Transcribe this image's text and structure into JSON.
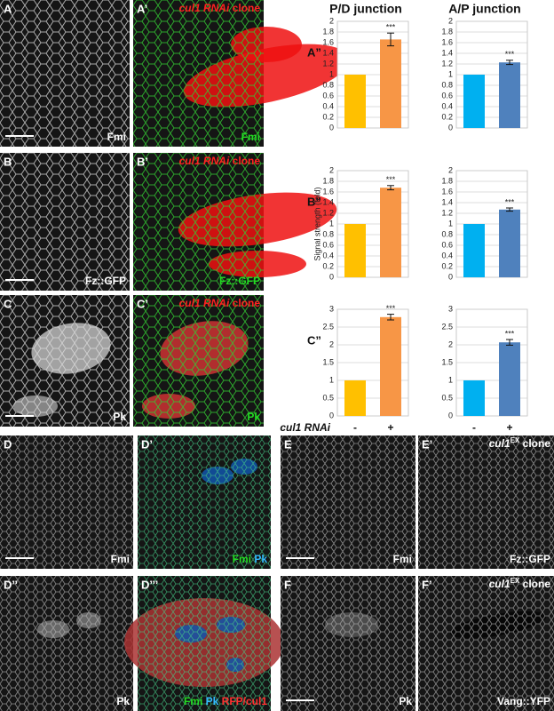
{
  "headers": [
    "P/D junction",
    "A/P junction"
  ],
  "panels": [
    {
      "label": "A",
      "bottom": [
        {
          "text": "Fmi",
          "color": "#ffffff"
        }
      ]
    },
    {
      "label": "A’",
      "top": [
        {
          "text": "cul1 RNAi",
          "color": "#ff2020",
          "italic": true
        },
        {
          "text": " clone",
          "color": "#ff2020"
        }
      ],
      "bottom": [
        {
          "text": "Fmi",
          "color": "#22dd22"
        }
      ]
    },
    {
      "label": "B",
      "bottom": [
        {
          "text": "Fz::GFP",
          "color": "#ffffff"
        }
      ]
    },
    {
      "label": "B’",
      "top": [
        {
          "text": "cul1 RNAi",
          "color": "#ff2020",
          "italic": true
        },
        {
          "text": " clone",
          "color": "#ff2020"
        }
      ],
      "bottom": [
        {
          "text": "Fz::GFP",
          "color": "#22dd22"
        }
      ]
    },
    {
      "label": "C",
      "bottom": [
        {
          "text": "Pk",
          "color": "#ffffff"
        }
      ]
    },
    {
      "label": "C’",
      "top": [
        {
          "text": "cul1 RNAi",
          "color": "#ff2020",
          "italic": true
        },
        {
          "text": " clone",
          "color": "#ff2020"
        }
      ],
      "bottom": [
        {
          "text": "Pk",
          "color": "#22dd22"
        }
      ]
    },
    {
      "label": "D",
      "bottom": [
        {
          "text": "Fmi",
          "color": "#ffffff"
        }
      ]
    },
    {
      "label": "D’",
      "bottom": [
        {
          "text": "Fmi",
          "color": "#22dd22"
        },
        {
          "text": " Pk",
          "color": "#33bbff"
        }
      ]
    },
    {
      "label": "E",
      "bottom": [
        {
          "text": "Fmi",
          "color": "#ffffff"
        }
      ]
    },
    {
      "label": "E’",
      "top": [
        {
          "text": "cul1",
          "color": "#ffffff",
          "italic": true
        },
        {
          "text": "EX",
          "color": "#ffffff",
          "sup": true
        },
        {
          "text": " clone",
          "color": "#ffffff"
        }
      ],
      "bottom": [
        {
          "text": "Fz::GFP",
          "color": "#ffffff"
        }
      ]
    },
    {
      "label": "D’’",
      "bottom": [
        {
          "text": "Pk",
          "color": "#ffffff"
        }
      ]
    },
    {
      "label": "D’’’",
      "bottom": [
        {
          "text": "Fmi",
          "color": "#22dd22"
        },
        {
          "text": " Pk",
          "color": "#33bbff"
        },
        {
          "text": " RFP/cul1",
          "color": "#ff3030"
        }
      ]
    },
    {
      "label": "F",
      "bottom": [
        {
          "text": "Pk",
          "color": "#ffffff"
        }
      ]
    },
    {
      "label": "F’",
      "top": [
        {
          "text": "cul1",
          "color": "#ffffff",
          "italic": true
        },
        {
          "text": "EX",
          "color": "#ffffff",
          "sup": true
        },
        {
          "text": " clone",
          "color": "#ffffff"
        }
      ],
      "bottom": [
        {
          "text": "Vang::YFP",
          "color": "#ffffff"
        }
      ]
    }
  ],
  "chart_data": [
    {
      "type": "bar",
      "panel_label": "A”",
      "categories": [
        null,
        null
      ],
      "values": [
        1,
        1.66
      ],
      "errors": [
        null,
        0.12
      ],
      "colors": [
        "#ffc000",
        "#f79646"
      ],
      "annotations": [
        null,
        "***"
      ],
      "ylim": [
        0,
        2
      ],
      "yticks": [
        0,
        0.2,
        0.4,
        0.6,
        0.8,
        1,
        1.2,
        1.4,
        1.6,
        1.8,
        2
      ],
      "grid": true
    },
    {
      "type": "bar",
      "categories": [
        null,
        null
      ],
      "values": [
        1,
        1.23
      ],
      "errors": [
        null,
        0.04
      ],
      "colors": [
        "#00b0f0",
        "#4f81bd"
      ],
      "annotations": [
        null,
        "***"
      ],
      "ylim": [
        0,
        2
      ],
      "yticks": [
        0,
        0.2,
        0.4,
        0.6,
        0.8,
        1,
        1.2,
        1.4,
        1.6,
        1.8,
        2
      ],
      "grid": true
    },
    {
      "type": "bar",
      "panel_label": "B”",
      "y_label": "Signal strength (fold)",
      "categories": [
        null,
        null
      ],
      "values": [
        1,
        1.68
      ],
      "errors": [
        null,
        0.04
      ],
      "colors": [
        "#ffc000",
        "#f79646"
      ],
      "annotations": [
        null,
        "***"
      ],
      "ylim": [
        0,
        2
      ],
      "yticks": [
        0,
        0.2,
        0.4,
        0.6,
        0.8,
        1,
        1.2,
        1.4,
        1.6,
        1.8,
        2
      ],
      "grid": true
    },
    {
      "type": "bar",
      "categories": [
        null,
        null
      ],
      "values": [
        1,
        1.27
      ],
      "errors": [
        null,
        0.03
      ],
      "colors": [
        "#00b0f0",
        "#4f81bd"
      ],
      "annotations": [
        null,
        "***"
      ],
      "ylim": [
        0,
        2
      ],
      "yticks": [
        0,
        0.2,
        0.4,
        0.6,
        0.8,
        1,
        1.2,
        1.4,
        1.6,
        1.8,
        2
      ],
      "grid": true
    },
    {
      "type": "bar",
      "panel_label": "C”",
      "x_label": "cul1 RNAi",
      "categories": [
        "-",
        "+"
      ],
      "values": [
        1,
        2.78
      ],
      "errors": [
        null,
        0.08
      ],
      "colors": [
        "#ffc000",
        "#f79646"
      ],
      "annotations": [
        null,
        "***"
      ],
      "ylim": [
        0,
        3
      ],
      "yticks": [
        0,
        0.5,
        1,
        1.5,
        2,
        2.5,
        3
      ],
      "grid": true
    },
    {
      "type": "bar",
      "categories": [
        "-",
        "+"
      ],
      "values": [
        1,
        2.07
      ],
      "errors": [
        null,
        0.08
      ],
      "colors": [
        "#00b0f0",
        "#4f81bd"
      ],
      "annotations": [
        null,
        "***"
      ],
      "ylim": [
        0,
        3
      ],
      "yticks": [
        0,
        0.5,
        1,
        1.5,
        2,
        2.5,
        3
      ],
      "grid": true
    }
  ]
}
